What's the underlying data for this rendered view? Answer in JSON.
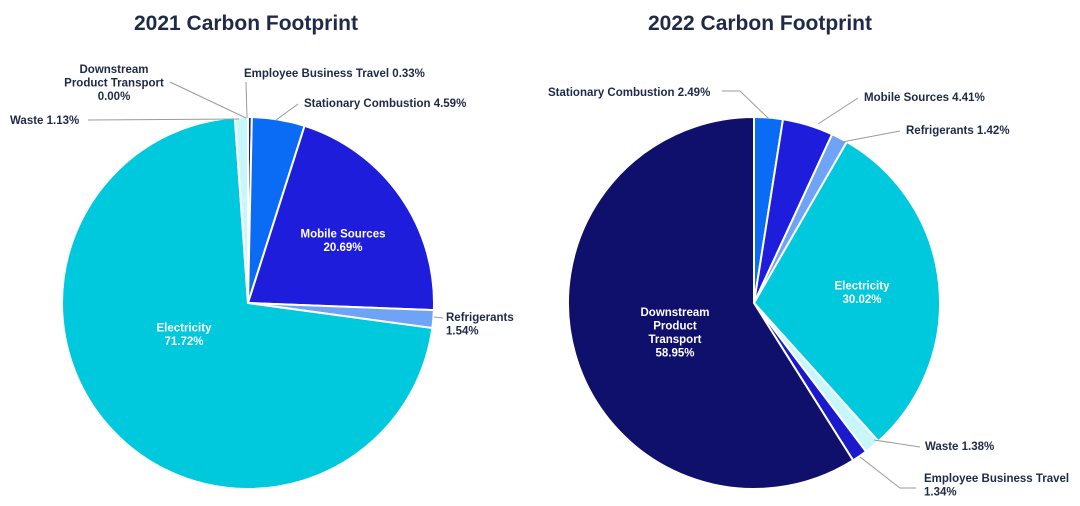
{
  "colors": {
    "employee_business_travel": "#1a1acc",
    "stationary_combustion": "#0a6cf5",
    "mobile_sources": "#1d1ddb",
    "refrigerants": "#6fa3f5",
    "electricity": "#00c8dd",
    "waste": "#c8f7fb",
    "downstream_product_transport": "#0f0f6c"
  },
  "chart_data": [
    {
      "type": "pie",
      "title": "2021 Carbon Footprint",
      "slices": [
        {
          "key": "downstream_product_transport",
          "label": [
            "Downstream",
            "Product Transport",
            "0.00%"
          ],
          "value": 0.0
        },
        {
          "key": "employee_business_travel",
          "label": [
            "Employee Business Travel 0.33%"
          ],
          "value": 0.33
        },
        {
          "key": "stationary_combustion",
          "label": [
            "Stationary Combustion 4.59%"
          ],
          "value": 4.59
        },
        {
          "key": "mobile_sources",
          "label": [
            "Mobile Sources",
            "20.69%"
          ],
          "value": 20.69
        },
        {
          "key": "refrigerants",
          "label": [
            "Refrigerants",
            "1.54%"
          ],
          "value": 1.54
        },
        {
          "key": "electricity",
          "label": [
            "Electricity",
            "71.72%"
          ],
          "value": 71.72
        },
        {
          "key": "waste",
          "label": [
            "Waste 1.13%"
          ],
          "value": 1.13
        }
      ]
    },
    {
      "type": "pie",
      "title": "2022 Carbon Footprint",
      "slices": [
        {
          "key": "stationary_combustion",
          "label": [
            "Stationary Combustion 2.49%"
          ],
          "value": 2.49
        },
        {
          "key": "mobile_sources",
          "label": [
            "Mobile Sources 4.41%"
          ],
          "value": 4.41
        },
        {
          "key": "refrigerants",
          "label": [
            "Refrigerants 1.42%"
          ],
          "value": 1.42
        },
        {
          "key": "electricity",
          "label": [
            "Electricity",
            "30.02%"
          ],
          "value": 30.02
        },
        {
          "key": "waste",
          "label": [
            "Waste 1.38%"
          ],
          "value": 1.38
        },
        {
          "key": "employee_business_travel",
          "label": [
            "Employee Business Travel",
            "1.34%"
          ],
          "value": 1.34
        },
        {
          "key": "downstream_product_transport",
          "label": [
            "Downstream",
            "Product",
            "Transport",
            "58.95%"
          ],
          "value": 58.95
        }
      ]
    }
  ]
}
